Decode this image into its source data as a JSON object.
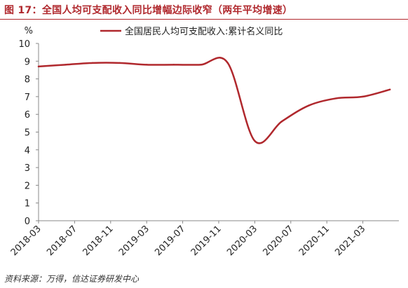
{
  "figure": {
    "title": "图 17：全国人均可支配收入同比增幅边际收窄（两年平均增速）",
    "source": "资料来源：万得，信达证券研发中心"
  },
  "colors": {
    "accent": "#b0282d",
    "axis": "#888888",
    "text": "#222222"
  },
  "chart_data": {
    "type": "line",
    "ylabel": "%",
    "ylim": [
      0,
      10
    ],
    "yticks": [
      0,
      1,
      2,
      3,
      4,
      5,
      6,
      7,
      8,
      9,
      10
    ],
    "x": [
      "2018-03",
      "2018-06",
      "2018-09",
      "2018-12",
      "2019-03",
      "2019-06",
      "2019-09",
      "2019-12",
      "2020-03",
      "2020-06",
      "2020-09",
      "2020-12",
      "2021-03",
      "2021-06"
    ],
    "xticks": [
      "2018-03",
      "2018-07",
      "2018-11",
      "2019-03",
      "2019-07",
      "2019-11",
      "2020-03",
      "2020-07",
      "2020-11",
      "2021-03"
    ],
    "grid": false,
    "legend_position": "top",
    "series": [
      {
        "name": "全国居民人均可支配收入:累计名义同比",
        "color": "#b0282d",
        "values": [
          8.7,
          8.8,
          8.9,
          8.9,
          8.8,
          8.8,
          8.8,
          8.9,
          4.5,
          5.6,
          6.5,
          6.9,
          7.0,
          7.4
        ]
      }
    ]
  }
}
